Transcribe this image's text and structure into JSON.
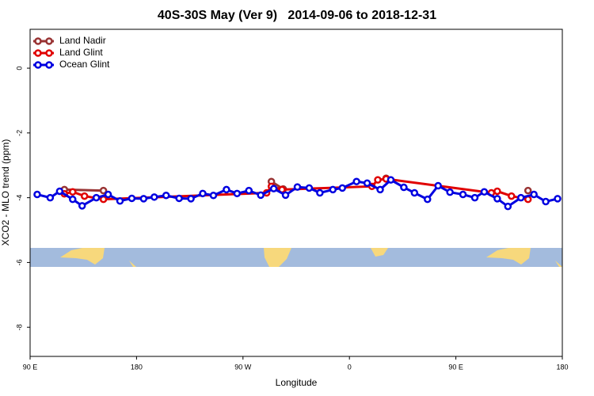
{
  "chart_data": {
    "type": "line",
    "title": "40S-30S May (Ver 9)   2014-09-06 to 2018-12-31",
    "xlabel": "Longitude",
    "ylabel": "XCO2 - MLO trend (ppm)",
    "xlim": [
      90,
      540
    ],
    "ylim": [
      -8.9,
      1.2
    ],
    "xticks": [
      {
        "value": 90,
        "label": "90 E"
      },
      {
        "value": 180,
        "label": "180"
      },
      {
        "value": 270,
        "label": "90 W"
      },
      {
        "value": 360,
        "label": "0"
      },
      {
        "value": 450,
        "label": "90 E"
      },
      {
        "value": 540,
        "label": "180"
      }
    ],
    "yticks": [
      0,
      -2,
      -4,
      -6,
      -8
    ],
    "legend": "top-left",
    "series": [
      {
        "name": "Land Nadir",
        "color": "#993333",
        "x": [
          119,
          152,
          289,
          294,
          304,
          379,
          391,
          479,
          511
        ],
        "values": [
          -3.75,
          -3.78,
          null,
          -3.5,
          -3.73,
          null,
          -3.4,
          null,
          -3.78
        ]
      },
      {
        "name": "Land Glint",
        "color": "#e00000",
        "x": [
          119,
          126,
          136,
          152,
          290,
          294,
          303,
          379,
          384,
          391,
          480,
          485,
          497,
          511
        ],
        "values": [
          -3.88,
          -3.82,
          -3.95,
          -4.05,
          -3.85,
          -3.65,
          -3.75,
          -3.65,
          -3.45,
          -3.42,
          -3.85,
          -3.8,
          -3.95,
          -4.05
        ]
      },
      {
        "name": "Ocean Glint",
        "color": "#0000e0",
        "x": [
          96,
          107,
          115,
          126,
          134,
          146,
          156,
          166,
          176,
          186,
          195,
          205,
          216,
          226,
          236,
          245,
          256,
          265,
          275,
          285,
          296,
          306,
          316,
          326,
          335,
          346,
          354,
          366,
          375,
          386,
          395,
          406,
          415,
          426,
          435,
          445,
          456,
          466,
          474,
          485,
          494,
          505,
          516,
          526,
          536
        ],
        "values": [
          -3.9,
          -4.0,
          -3.8,
          -4.05,
          -4.25,
          -4.0,
          -3.9,
          -4.1,
          -4.02,
          -4.03,
          -3.98,
          -3.93,
          -4.02,
          -4.03,
          -3.87,
          -3.93,
          -3.75,
          -3.87,
          -3.78,
          -3.92,
          -3.72,
          -3.92,
          -3.67,
          -3.7,
          -3.85,
          -3.75,
          -3.7,
          -3.5,
          -3.55,
          -3.75,
          -3.45,
          -3.68,
          -3.85,
          -4.05,
          -3.63,
          -3.83,
          -3.9,
          -4.0,
          -3.82,
          -4.03,
          -4.27,
          -4.0,
          -3.9,
          -4.12,
          -4.03
        ]
      }
    ]
  }
}
